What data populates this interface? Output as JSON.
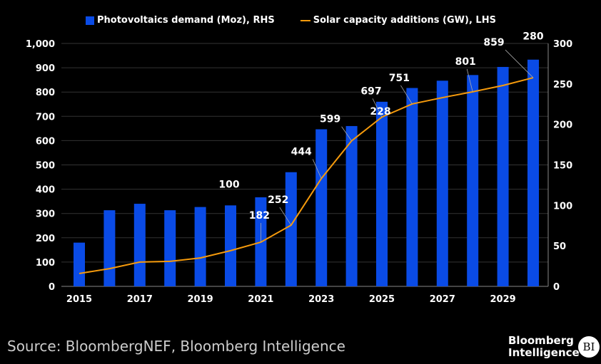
{
  "chart_data": {
    "type": "bar+line",
    "title": "",
    "legend": [
      "Photovoltaics demand (Moz), RHS",
      "Solar capacity additions (GW), LHS"
    ],
    "legend_placement": "top",
    "x": [
      2015,
      2016,
      2017,
      2018,
      2019,
      2020,
      2021,
      2022,
      2023,
      2024,
      2025,
      2026,
      2027,
      2028,
      2029,
      2030
    ],
    "x_tick_labels": [
      "2015",
      "2017",
      "2019",
      "2021",
      "2023",
      "2025",
      "2027",
      "2029"
    ],
    "series": [
      {
        "name": "Photovoltaics demand (Moz), RHS",
        "type": "bar",
        "axis": "right",
        "color": "#0a4be6",
        "values": [
          54,
          94,
          102,
          94,
          98,
          100,
          110,
          141,
          194,
          198,
          228,
          245,
          254,
          261,
          271,
          280
        ]
      },
      {
        "name": "Solar capacity additions (GW), LHS",
        "type": "line",
        "axis": "left",
        "color": "#f59a0c",
        "values": [
          53,
          73,
          100,
          103,
          117,
          147,
          182,
          252,
          444,
          599,
          697,
          751,
          777,
          801,
          827,
          859
        ]
      }
    ],
    "left_axis": {
      "range": [
        0,
        1000
      ],
      "ticks": [
        "0",
        "100",
        "200",
        "300",
        "400",
        "500",
        "600",
        "700",
        "800",
        "900",
        "1,000"
      ]
    },
    "right_axis": {
      "range": [
        0,
        300
      ],
      "ticks": [
        "0",
        "50",
        "100",
        "150",
        "200",
        "250",
        "300"
      ]
    },
    "grid": true,
    "annotations": [
      {
        "text": "100",
        "x": 2020,
        "series": 0
      },
      {
        "text": "182",
        "x": 2021,
        "series": 1
      },
      {
        "text": "252",
        "x": 2022,
        "series": 1
      },
      {
        "text": "444",
        "x": 2023,
        "series": 1
      },
      {
        "text": "599",
        "x": 2024,
        "series": 1
      },
      {
        "text": "697",
        "x": 2025,
        "series": 1
      },
      {
        "text": "228",
        "x": 2025,
        "series": 0
      },
      {
        "text": "751",
        "x": 2026,
        "series": 1
      },
      {
        "text": "801",
        "x": 2028,
        "series": 1
      },
      {
        "text": "859",
        "x": 2030,
        "series": 1
      },
      {
        "text": "280",
        "x": 2030,
        "series": 0
      }
    ]
  },
  "source": "Source: BloombergNEF, Bloomberg Intelligence",
  "logo": {
    "line1": "Bloomberg",
    "line2": "Intelligence",
    "badge": "BI"
  }
}
